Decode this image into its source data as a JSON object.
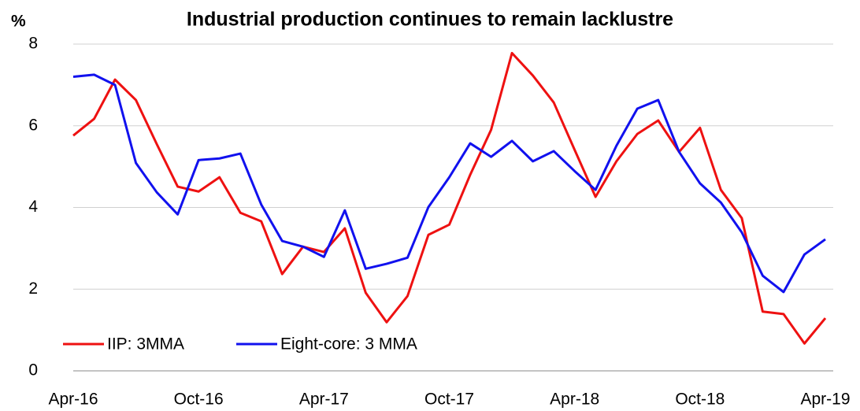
{
  "chart_data": {
    "type": "line",
    "title": "Industrial production continues to remain lacklustre",
    "y_label": "%",
    "categories": [
      "Apr-16",
      null,
      null,
      null,
      null,
      null,
      "Oct-16",
      null,
      null,
      null,
      null,
      null,
      "Apr-17",
      null,
      null,
      null,
      null,
      null,
      "Oct-17",
      null,
      null,
      null,
      null,
      null,
      "Apr-18",
      null,
      null,
      null,
      null,
      null,
      "Oct-18",
      null,
      null,
      null,
      null,
      null,
      "Apr-19"
    ],
    "series": [
      {
        "name": "IIP: 3MMA",
        "color": "#ee1111",
        "values": [
          5.76,
          6.17,
          7.13,
          6.63,
          5.55,
          4.51,
          4.39,
          4.74,
          3.87,
          3.66,
          2.37,
          3.04,
          2.91,
          3.49,
          1.91,
          1.19,
          1.83,
          3.33,
          3.58,
          4.8,
          5.9,
          7.78,
          7.23,
          6.57,
          5.41,
          4.26,
          5.13,
          5.8,
          6.13,
          5.36,
          5.95,
          4.43,
          3.74,
          1.45,
          1.39,
          0.67,
          1.29
        ]
      },
      {
        "name": "Eight-core: 3 MMA",
        "color": "#1111ee",
        "values": [
          7.2,
          7.25,
          7.0,
          5.09,
          4.37,
          3.83,
          5.16,
          5.2,
          5.32,
          4.07,
          3.18,
          3.04,
          2.79,
          3.93,
          2.5,
          2.62,
          2.77,
          4.01,
          4.74,
          5.57,
          5.24,
          5.63,
          5.13,
          5.38,
          4.89,
          4.43,
          5.51,
          6.42,
          6.63,
          5.36,
          4.59,
          4.12,
          3.39,
          2.33,
          1.93,
          2.85,
          3.22
        ]
      }
    ],
    "ylim": [
      0,
      8
    ],
    "yticks": [
      0,
      2,
      4,
      6,
      8
    ],
    "grid": true,
    "legend": "lower left"
  }
}
